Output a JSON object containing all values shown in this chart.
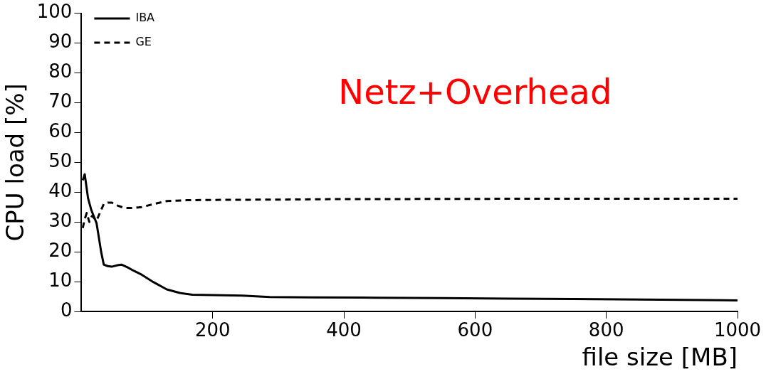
{
  "chart_data": {
    "type": "line",
    "xlabel": "file size [MB]",
    "ylabel": "CPU load [%]",
    "xlim": [
      0,
      1000
    ],
    "ylim": [
      0,
      100
    ],
    "xticks": [
      200,
      400,
      600,
      800,
      1000
    ],
    "yticks": [
      0,
      10,
      20,
      30,
      40,
      50,
      60,
      70,
      80,
      90,
      100
    ],
    "legend": "top left",
    "marker": "none",
    "annotations": [
      "Netz+Overhead"
    ],
    "series": [
      {
        "name": "IBA",
        "color": "#000000",
        "line_style": "solid",
        "x": [
          2,
          5,
          10,
          15,
          23,
          30,
          34,
          40,
          46,
          55,
          61,
          70,
          80,
          92,
          110,
          130,
          150,
          169,
          200,
          245,
          287,
          350,
          450,
          550,
          650,
          750,
          850,
          950,
          1000
        ],
        "values": [
          44,
          46,
          38,
          34,
          29.6,
          20,
          15.7,
          15.2,
          15,
          15.5,
          15.7,
          14.8,
          13.6,
          12.3,
          9.8,
          7.4,
          6.2,
          5.6,
          5.5,
          5.3,
          4.8,
          4.7,
          4.6,
          4.5,
          4.3,
          4.2,
          4,
          3.8,
          3.7
        ]
      },
      {
        "name": "GE",
        "color": "#000000",
        "line_style": "dashed",
        "x": [
          2,
          5,
          8,
          12,
          16,
          23,
          28,
          34,
          40,
          46,
          55,
          65,
          80,
          92,
          110,
          130,
          160,
          200,
          300,
          400,
          500,
          700,
          900,
          1000
        ],
        "values": [
          28,
          31,
          33,
          30,
          32,
          30.5,
          33,
          36,
          36.5,
          36.5,
          35.5,
          34.7,
          34.7,
          35,
          36,
          37,
          37.3,
          37.4,
          37.5,
          37.7,
          37.7,
          37.8,
          37.8,
          37.8
        ]
      }
    ]
  }
}
